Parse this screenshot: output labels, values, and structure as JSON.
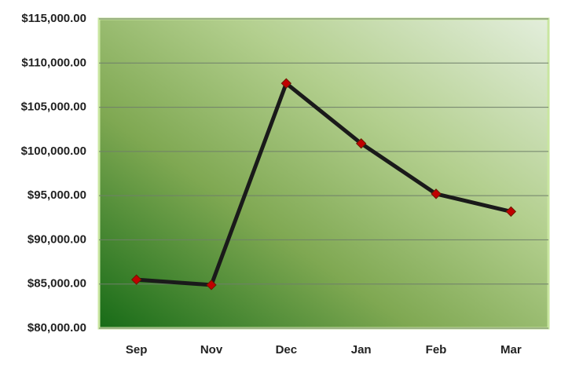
{
  "chart_data": {
    "type": "line",
    "categories": [
      "Sep",
      "Nov",
      "Dec",
      "Jan",
      "Feb",
      "Mar"
    ],
    "series": [
      {
        "color": "#1a1a1a",
        "marker_color": "#c00000",
        "values": [
          85500,
          84900,
          107700,
          100900,
          95200,
          93200
        ]
      }
    ],
    "ylim": [
      80000,
      115000
    ],
    "yticks": [
      {
        "value": 80000,
        "label": "$80,000.00"
      },
      {
        "value": 85000,
        "label": "$85,000.00"
      },
      {
        "value": 90000,
        "label": "$90,000.00"
      },
      {
        "value": 95000,
        "label": "$95,000.00"
      },
      {
        "value": 100000,
        "label": "$100,000.00"
      },
      {
        "value": 105000,
        "label": "$105,000.00"
      },
      {
        "value": 110000,
        "label": "$110,000.00"
      },
      {
        "value": 115000,
        "label": "$115,000.00"
      }
    ],
    "grid": true
  }
}
